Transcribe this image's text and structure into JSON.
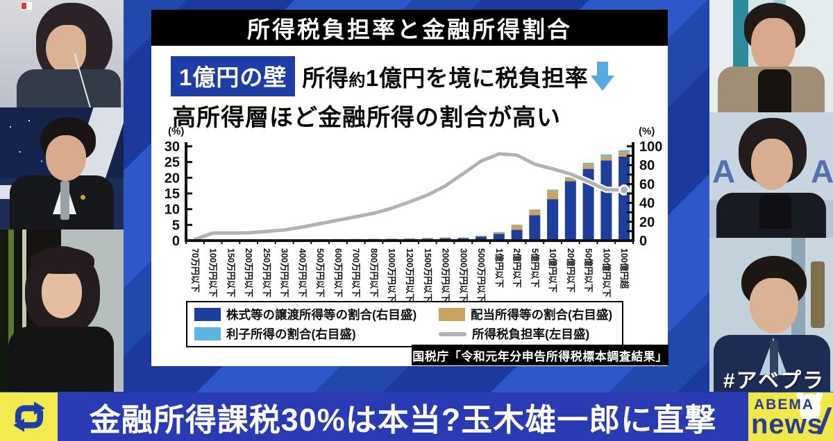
{
  "broadcast": {
    "hashtag": "#アベプラ",
    "ticker_text": "金融所得課税30%は本当?玉木雄一郎に直撃",
    "logo_top": "ABEMA",
    "logo_bottom": "news",
    "logo_slash": "/",
    "icons": {
      "ticker_left": "recycle-arrows-icon",
      "headline_arrow": "down-arrow-icon",
      "logo_mascot": "abema-mascot-icon"
    },
    "colors": {
      "ticker_blue": "#2a3ab2",
      "logo_yellow": "#efe84b",
      "background_blue": "#2e57c9",
      "badge_blue": "#1c3ea6",
      "arrow_blue": "#56aadd"
    }
  },
  "chart_panel": {
    "title": "所得税負担率と金融所得割合",
    "badge": "1億円の壁",
    "headline_prefix": "所得",
    "headline_small": "約",
    "headline_rest": "1億円を境に税負担率",
    "headline_sub": "高所得層ほど金融所得の割合が高い",
    "axis_left_unit": "(%)",
    "axis_right_unit": "(%)",
    "source": "国税庁「令和元年分申告所得税標本調査結果」",
    "legend": [
      {
        "label": "株式等の譲渡所得等の割合(右目盛)",
        "color": "#1e3e9d",
        "type": "box"
      },
      {
        "label": "配当所得等の割合(右目盛)",
        "color": "#c8a462",
        "type": "box"
      },
      {
        "label": "利子所得の割合(右目盛)",
        "color": "#5cb5e1",
        "type": "box"
      },
      {
        "label": "所得税負担率(左目盛)",
        "color": "#b2b2b2",
        "type": "line"
      }
    ]
  },
  "chart_data": {
    "type": "bar",
    "subtype": "stacked-bars-with-line",
    "title": "所得税負担率と金融所得割合",
    "categories": [
      "70万円以下",
      "100万円以下",
      "150万円以下",
      "200万円以下",
      "250万円以下",
      "300万円以下",
      "400万円以下",
      "500万円以下",
      "600万円以下",
      "700万円以下",
      "800万円以下",
      "1000万円以下",
      "1200万円以下",
      "1500万円以下",
      "2000万円以下",
      "3000万円以下",
      "5000万円以下",
      "1億円以下",
      "2億円以下",
      "5億円以下",
      "10億円以下",
      "20億円以下",
      "50億円以下",
      "100億円以下",
      "100億円超"
    ],
    "series": [
      {
        "name": "株式等の譲渡所得等の割合",
        "type": "bar",
        "axis": "right",
        "color": "#1e3e9d",
        "values": [
          0.6,
          0.7,
          0.7,
          0.8,
          0.8,
          0.9,
          0.9,
          1.0,
          1.1,
          1.2,
          1.3,
          1.5,
          1.7,
          2.0,
          2.4,
          2.5,
          4.2,
          7.2,
          11.5,
          27.0,
          44.0,
          63.0,
          76.0,
          85.0,
          89.0
        ]
      },
      {
        "name": "配当所得等の割合",
        "type": "bar",
        "axis": "right",
        "color": "#c8a462",
        "values": [
          0.3,
          0.2,
          0.2,
          0.2,
          0.2,
          0.2,
          0.3,
          0.3,
          0.3,
          0.3,
          0.4,
          0.4,
          0.5,
          0.6,
          0.7,
          0.6,
          0.8,
          1.6,
          5.0,
          5.5,
          9.5,
          3.5,
          5.0,
          4.5,
          5.0
        ]
      },
      {
        "name": "利子所得の割合",
        "type": "bar",
        "axis": "right",
        "color": "#5cb5e1",
        "values": [
          0.6,
          0.3,
          0.3,
          0.3,
          0.3,
          0.3,
          0.3,
          0.3,
          0.3,
          0.3,
          0.3,
          0.3,
          0.3,
          0.3,
          0.3,
          0.2,
          0.2,
          0.3,
          0.4,
          0.5,
          0.6,
          0.8,
          1.5,
          1.8,
          1.8
        ]
      },
      {
        "name": "所得税負担率",
        "type": "line",
        "axis": "left",
        "color": "#b2b2b2",
        "values": [
          0.4,
          2.4,
          2.4,
          2.5,
          2.9,
          3.4,
          4.3,
          5.4,
          6.5,
          7.6,
          8.7,
          10.3,
          12.3,
          14.5,
          17.4,
          21.3,
          25.3,
          27.6,
          27.2,
          24.3,
          22.8,
          21.2,
          18.8,
          16.2,
          16.1
        ]
      }
    ],
    "left_axis": {
      "unit": "(%)",
      "range": [
        0,
        30
      ],
      "ticks": [
        0,
        5,
        10,
        15,
        20,
        25,
        30
      ]
    },
    "right_axis": {
      "unit": "(%)",
      "range": [
        0,
        100
      ],
      "ticks": [
        0,
        20,
        40,
        60,
        80,
        100
      ],
      "minor_step": 10
    },
    "grid": false,
    "legend_position": "bottom"
  }
}
